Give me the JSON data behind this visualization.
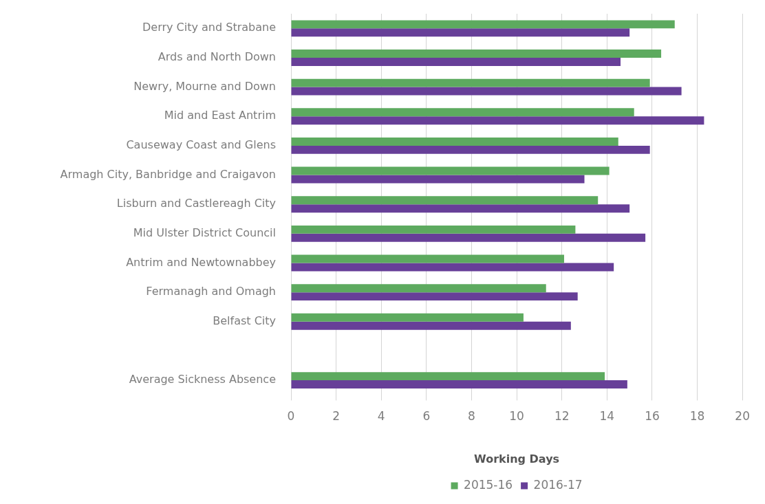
{
  "chart_data": {
    "type": "bar",
    "orientation": "horizontal",
    "xlabel": "Working Days",
    "categories": [
      "Derry City and Strabane",
      "Ards and North Down",
      "Newry, Mourne and Down",
      "Mid and East Antrim",
      "Causeway Coast and Glens",
      "Armagh City, Banbridge and Craigavon",
      "Lisburn and Castlereagh City",
      "Mid Ulster District Council",
      "Antrim and Newtownabbey",
      "Fermanagh and Omagh",
      "Belfast City",
      null,
      "Average Sickness Absence"
    ],
    "series": [
      {
        "name": "2015-16",
        "color": "#5daa5f",
        "values": [
          17.0,
          16.4,
          15.9,
          15.2,
          14.5,
          14.1,
          13.6,
          12.6,
          12.1,
          11.3,
          10.3,
          null,
          13.9
        ]
      },
      {
        "name": "2016-17",
        "color": "#673f98",
        "values": [
          15.0,
          14.6,
          17.3,
          18.3,
          15.9,
          13.0,
          15.0,
          15.7,
          14.3,
          12.7,
          12.4,
          null,
          14.9
        ]
      }
    ],
    "xlim": [
      0,
      20
    ],
    "xticks": [
      0,
      2,
      4,
      6,
      8,
      10,
      12,
      14,
      16,
      18,
      20
    ],
    "grid": "x",
    "legend": "bottom"
  }
}
